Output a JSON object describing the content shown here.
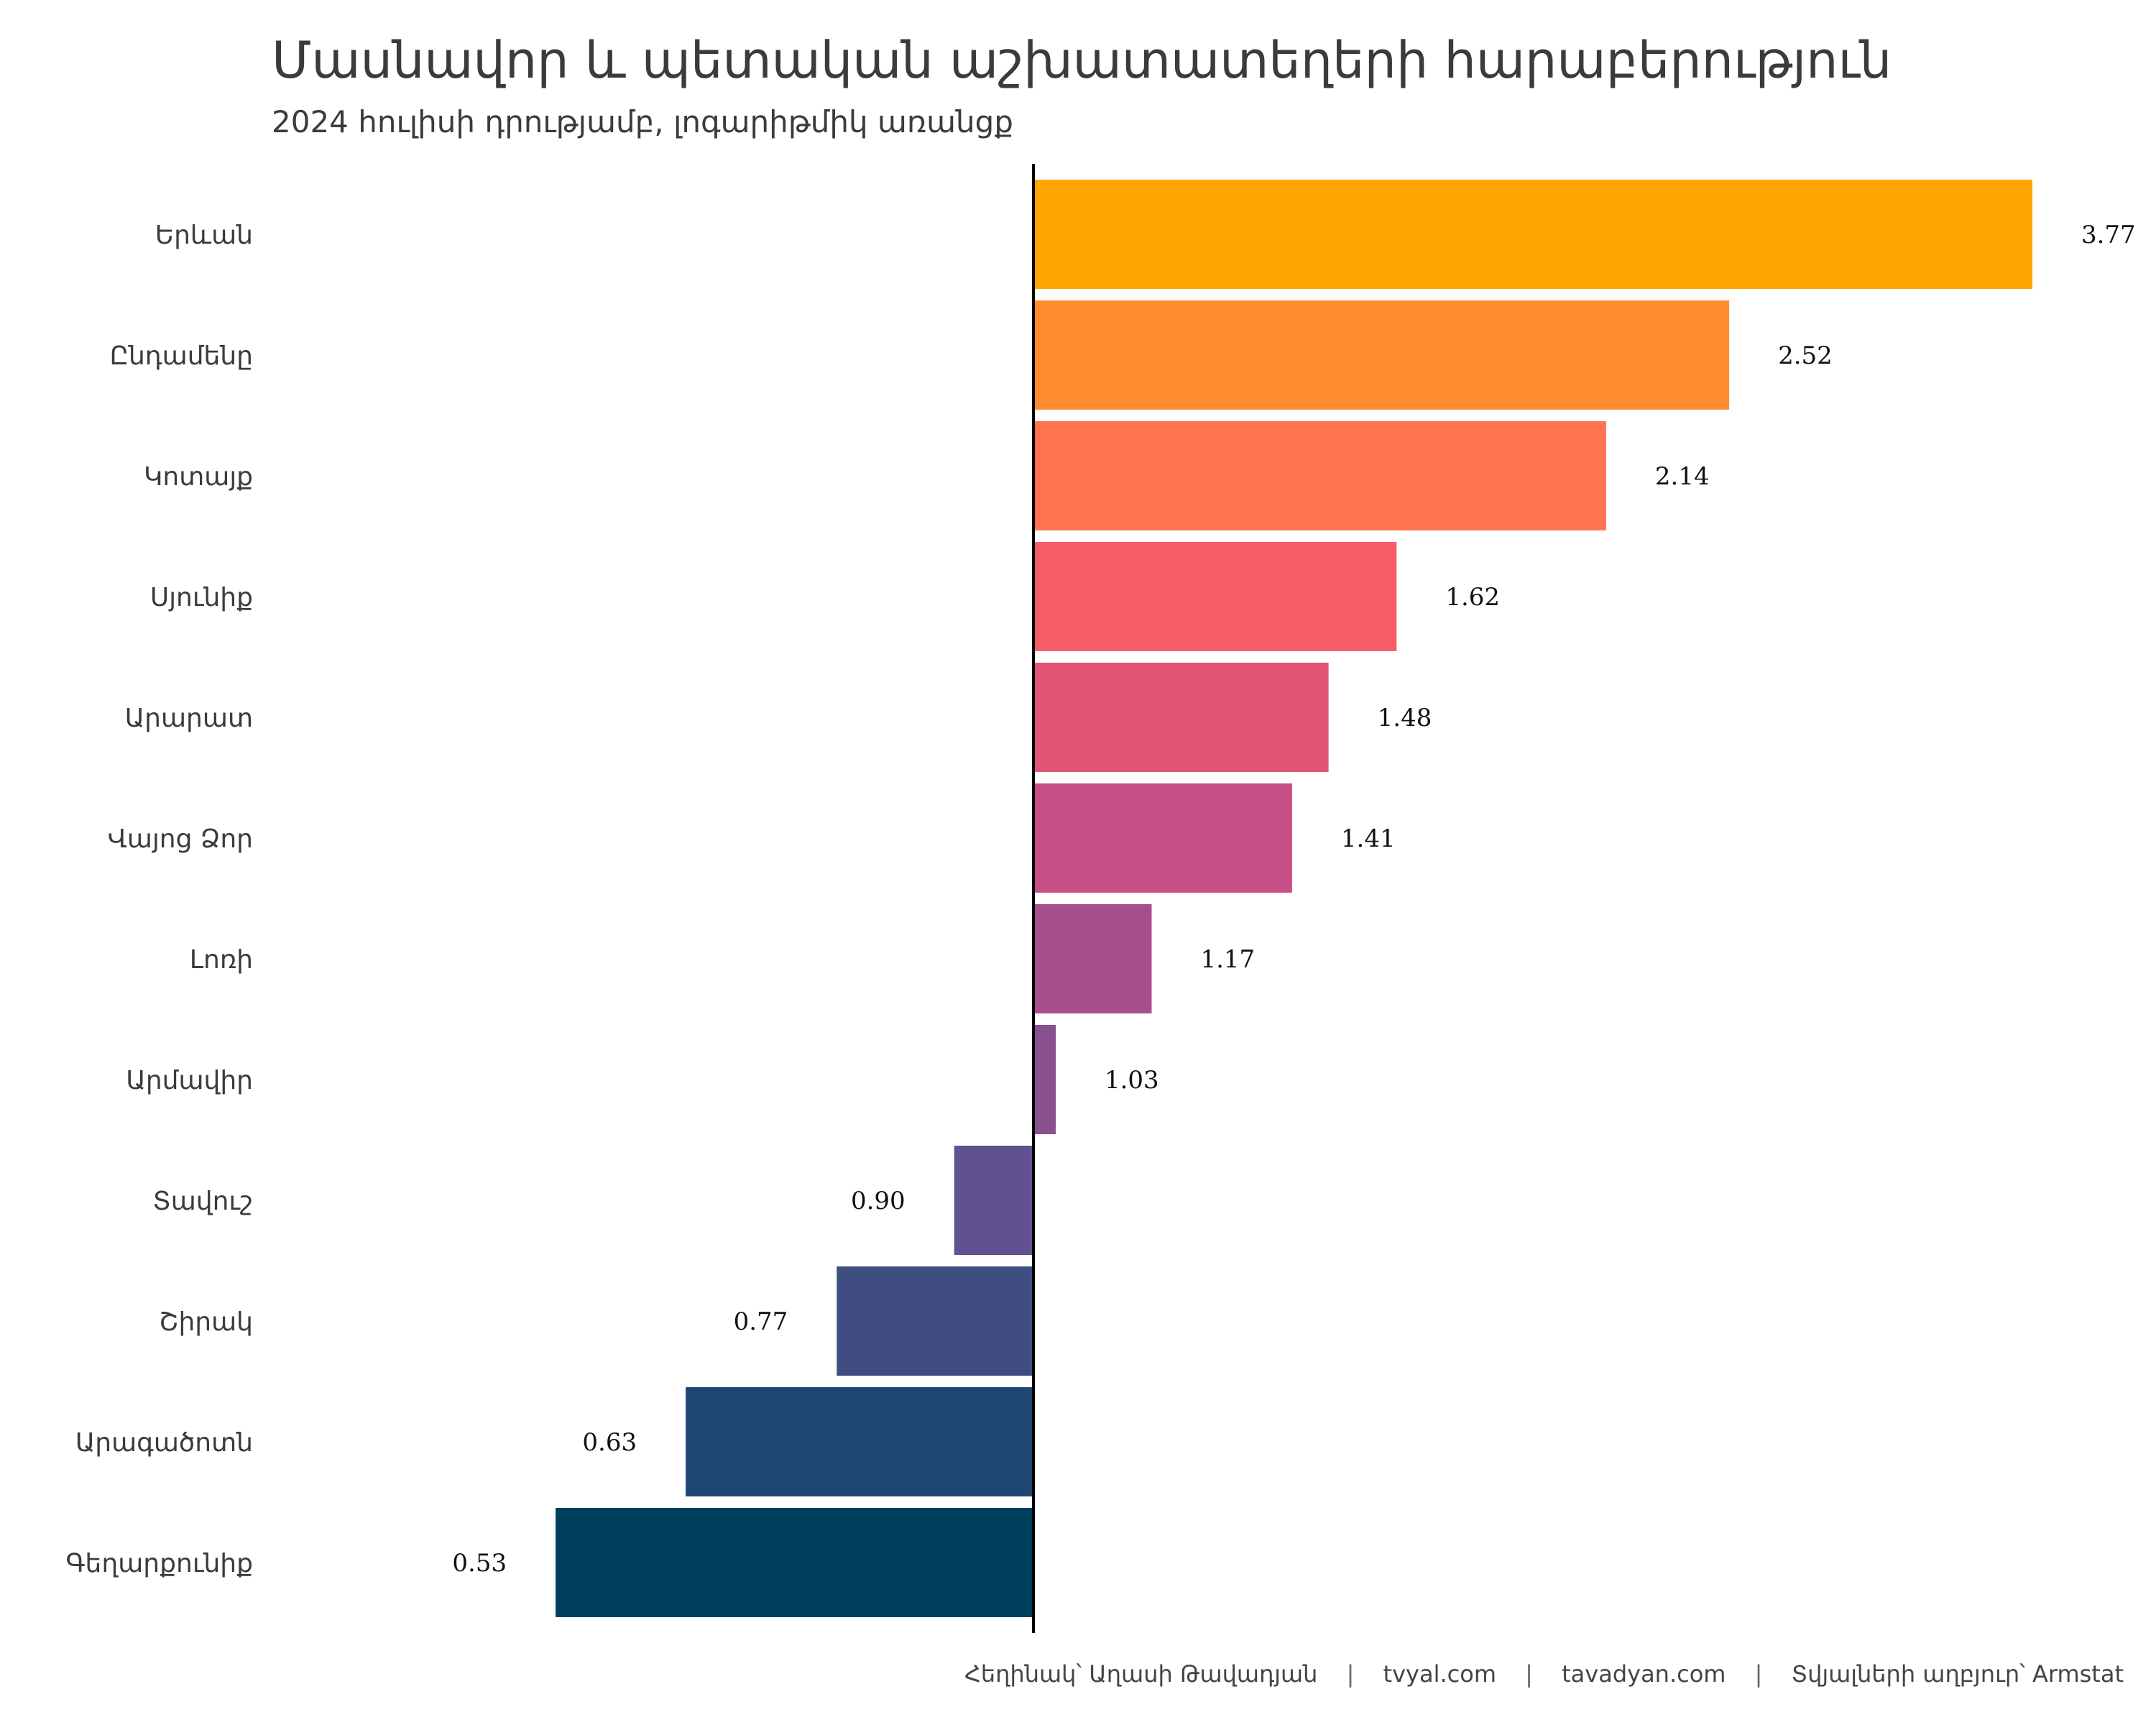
{
  "chart_data": {
    "type": "bar",
    "orientation": "horizontal",
    "title": "Մասնավոր և պետական աշխատատեղերի հարաբերություն",
    "subtitle": "2024 հուլիսի դրությամբ, լոգարիթմիկ առանցք",
    "scale": "log",
    "baseline": 1,
    "xlim": [
      0.445,
      4.0
    ],
    "grid": false,
    "legend": "none",
    "categories": [
      "Երևան",
      "Ընդամենը",
      "Կոտայք",
      "Սյունիք",
      "Արարատ",
      "Վայոց Ձոր",
      "Լոռի",
      "Արմավիր",
      "Տավուշ",
      "Շիրակ",
      "Արագածոտն",
      "Գեղարքունիք"
    ],
    "values": [
      3.77,
      2.52,
      2.14,
      1.62,
      1.48,
      1.41,
      1.17,
      1.03,
      0.9,
      0.77,
      0.63,
      0.53
    ],
    "value_labels": [
      "3.77",
      "2.52",
      "2.14",
      "1.62",
      "1.48",
      "1.41",
      "1.17",
      "1.03",
      "0.90",
      "0.77",
      "0.63",
      "0.53"
    ],
    "colors": [
      "#ffa600",
      "#ff8c2e",
      "#ff7350",
      "#f95d6a",
      "#e35577",
      "#c95086",
      "#a74f8e",
      "#88508f",
      "#625190",
      "#3f4d80",
      "#1f4670",
      "#003f5c"
    ]
  },
  "caption": {
    "author": "Հեղինակ՝ Աղասի Թավադյան",
    "site1": "tvyal.com",
    "site2": "tavadyan.com",
    "source": "Տվյալների աղբյուր՝ Armstat",
    "separator": "|"
  }
}
